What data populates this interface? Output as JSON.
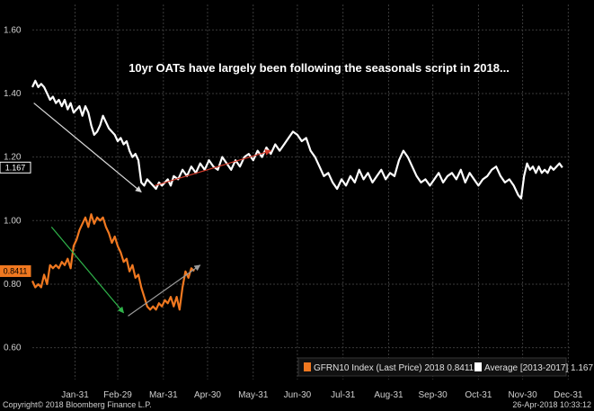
{
  "chart_data": {
    "type": "line",
    "title": "",
    "annotation": "10yr OATs have largely been following the seasonals script in 2018...",
    "xlabel": "",
    "ylabel": "",
    "ylim": [
      0.5,
      1.68
    ],
    "yticks": [
      "1.60",
      "1.40",
      "1.20",
      "1.00",
      "0.80",
      "0.60"
    ],
    "ytick_values": [
      1.6,
      1.4,
      1.2,
      1.0,
      0.8,
      0.6
    ],
    "xticks": [
      "Jan-31",
      "Feb-29",
      "Mar-31",
      "Apr-30",
      "May-31",
      "Jun-30",
      "Jul-31",
      "Aug-31",
      "Sep-30",
      "Oct-31",
      "Nov-30",
      "Dec-31"
    ],
    "xtick_days": [
      30,
      59,
      90,
      120,
      151,
      181,
      212,
      243,
      273,
      304,
      334,
      365
    ],
    "grid": true,
    "legend_position": "bottom-right",
    "series": [
      {
        "name": "GFRN10 Index (Last Price) 2018 0.8411",
        "color": "#f07820",
        "last_label": "0.8411",
        "points": [
          [
            1,
            0.81
          ],
          [
            3,
            0.79
          ],
          [
            5,
            0.8
          ],
          [
            7,
            0.79
          ],
          [
            9,
            0.83
          ],
          [
            11,
            0.8
          ],
          [
            13,
            0.86
          ],
          [
            15,
            0.85
          ],
          [
            17,
            0.86
          ],
          [
            19,
            0.85
          ],
          [
            21,
            0.87
          ],
          [
            23,
            0.86
          ],
          [
            25,
            0.88
          ],
          [
            27,
            0.85
          ],
          [
            29,
            0.92
          ],
          [
            31,
            0.94
          ],
          [
            33,
            0.97
          ],
          [
            35,
            0.99
          ],
          [
            37,
            1.01
          ],
          [
            39,
            0.98
          ],
          [
            41,
            1.02
          ],
          [
            43,
            0.99
          ],
          [
            45,
            1.01
          ],
          [
            47,
            1.0
          ],
          [
            49,
            1.01
          ],
          [
            51,
            0.98
          ],
          [
            53,
            0.96
          ],
          [
            55,
            0.93
          ],
          [
            57,
            0.95
          ],
          [
            59,
            0.92
          ],
          [
            61,
            0.9
          ],
          [
            63,
            0.87
          ],
          [
            65,
            0.88
          ],
          [
            67,
            0.84
          ],
          [
            69,
            0.86
          ],
          [
            71,
            0.82
          ],
          [
            73,
            0.83
          ],
          [
            75,
            0.79
          ],
          [
            77,
            0.76
          ],
          [
            79,
            0.73
          ],
          [
            81,
            0.72
          ],
          [
            83,
            0.73
          ],
          [
            85,
            0.72
          ],
          [
            87,
            0.74
          ],
          [
            89,
            0.73
          ],
          [
            91,
            0.75
          ],
          [
            93,
            0.74
          ],
          [
            95,
            0.76
          ],
          [
            97,
            0.73
          ],
          [
            99,
            0.76
          ],
          [
            101,
            0.72
          ],
          [
            103,
            0.79
          ],
          [
            105,
            0.84
          ],
          [
            107,
            0.82
          ],
          [
            109,
            0.85
          ],
          [
            111,
            0.8411
          ]
        ]
      },
      {
        "name": "Average [2013-2017] 1.167",
        "color": "#ffffff",
        "last_label": "1.167",
        "points": [
          [
            1,
            1.42
          ],
          [
            3,
            1.44
          ],
          [
            5,
            1.42
          ],
          [
            7,
            1.43
          ],
          [
            9,
            1.42
          ],
          [
            11,
            1.4
          ],
          [
            13,
            1.38
          ],
          [
            15,
            1.39
          ],
          [
            17,
            1.37
          ],
          [
            19,
            1.38
          ],
          [
            21,
            1.36
          ],
          [
            23,
            1.38
          ],
          [
            25,
            1.35
          ],
          [
            27,
            1.37
          ],
          [
            29,
            1.34
          ],
          [
            31,
            1.35
          ],
          [
            33,
            1.36
          ],
          [
            35,
            1.33
          ],
          [
            37,
            1.36
          ],
          [
            39,
            1.34
          ],
          [
            41,
            1.3
          ],
          [
            43,
            1.27
          ],
          [
            45,
            1.28
          ],
          [
            47,
            1.3
          ],
          [
            49,
            1.33
          ],
          [
            51,
            1.31
          ],
          [
            53,
            1.29
          ],
          [
            55,
            1.28
          ],
          [
            57,
            1.27
          ],
          [
            59,
            1.25
          ],
          [
            61,
            1.26
          ],
          [
            63,
            1.24
          ],
          [
            65,
            1.25
          ],
          [
            67,
            1.22
          ],
          [
            69,
            1.2
          ],
          [
            71,
            1.21
          ],
          [
            73,
            1.19
          ],
          [
            75,
            1.12
          ],
          [
            77,
            1.11
          ],
          [
            79,
            1.13
          ],
          [
            81,
            1.12
          ],
          [
            83,
            1.11
          ],
          [
            85,
            1.1
          ],
          [
            87,
            1.12
          ],
          [
            89,
            1.11
          ],
          [
            91,
            1.12
          ],
          [
            93,
            1.13
          ],
          [
            95,
            1.11
          ],
          [
            97,
            1.14
          ],
          [
            100,
            1.13
          ],
          [
            103,
            1.16
          ],
          [
            106,
            1.14
          ],
          [
            109,
            1.17
          ],
          [
            112,
            1.15
          ],
          [
            115,
            1.18
          ],
          [
            118,
            1.16
          ],
          [
            121,
            1.19
          ],
          [
            124,
            1.17
          ],
          [
            127,
            1.16
          ],
          [
            130,
            1.2
          ],
          [
            133,
            1.18
          ],
          [
            136,
            1.16
          ],
          [
            139,
            1.19
          ],
          [
            142,
            1.17
          ],
          [
            145,
            1.2
          ],
          [
            148,
            1.21
          ],
          [
            151,
            1.19
          ],
          [
            154,
            1.22
          ],
          [
            157,
            1.2
          ],
          [
            160,
            1.23
          ],
          [
            163,
            1.21
          ],
          [
            166,
            1.24
          ],
          [
            169,
            1.22
          ],
          [
            172,
            1.24
          ],
          [
            175,
            1.26
          ],
          [
            178,
            1.28
          ],
          [
            181,
            1.27
          ],
          [
            184,
            1.25
          ],
          [
            187,
            1.26
          ],
          [
            190,
            1.22
          ],
          [
            193,
            1.2
          ],
          [
            196,
            1.17
          ],
          [
            199,
            1.14
          ],
          [
            202,
            1.15
          ],
          [
            205,
            1.12
          ],
          [
            208,
            1.1
          ],
          [
            211,
            1.13
          ],
          [
            214,
            1.11
          ],
          [
            217,
            1.14
          ],
          [
            220,
            1.12
          ],
          [
            223,
            1.16
          ],
          [
            226,
            1.13
          ],
          [
            229,
            1.15
          ],
          [
            232,
            1.12
          ],
          [
            235,
            1.14
          ],
          [
            238,
            1.16
          ],
          [
            241,
            1.13
          ],
          [
            244,
            1.15
          ],
          [
            247,
            1.14
          ],
          [
            250,
            1.19
          ],
          [
            253,
            1.22
          ],
          [
            256,
            1.2
          ],
          [
            259,
            1.17
          ],
          [
            262,
            1.14
          ],
          [
            265,
            1.12
          ],
          [
            268,
            1.13
          ],
          [
            271,
            1.11
          ],
          [
            274,
            1.13
          ],
          [
            277,
            1.15
          ],
          [
            280,
            1.12
          ],
          [
            283,
            1.14
          ],
          [
            286,
            1.15
          ],
          [
            289,
            1.13
          ],
          [
            292,
            1.16
          ],
          [
            295,
            1.12
          ],
          [
            298,
            1.15
          ],
          [
            301,
            1.13
          ],
          [
            304,
            1.11
          ],
          [
            307,
            1.13
          ],
          [
            310,
            1.14
          ],
          [
            313,
            1.16
          ],
          [
            316,
            1.17
          ],
          [
            319,
            1.14
          ],
          [
            322,
            1.12
          ],
          [
            325,
            1.13
          ],
          [
            328,
            1.11
          ],
          [
            331,
            1.08
          ],
          [
            333,
            1.07
          ],
          [
            335,
            1.14
          ],
          [
            337,
            1.18
          ],
          [
            339,
            1.16
          ],
          [
            341,
            1.17
          ],
          [
            343,
            1.15
          ],
          [
            345,
            1.17
          ],
          [
            347,
            1.15
          ],
          [
            349,
            1.16
          ],
          [
            351,
            1.15
          ],
          [
            353,
            1.17
          ],
          [
            355,
            1.16
          ],
          [
            357,
            1.17
          ],
          [
            359,
            1.18
          ],
          [
            361,
            1.167
          ]
        ]
      }
    ],
    "annotation_arrows": [
      {
        "color": "#d8d8d8",
        "from": [
          2,
          1.37
        ],
        "to": [
          75,
          1.09
        ]
      },
      {
        "color": "#d03a2a",
        "from": [
          84,
          1.11
        ],
        "to": [
          163,
          1.22
        ]
      },
      {
        "color": "#2fb34a",
        "from": [
          14,
          0.98
        ],
        "to": [
          63,
          0.71
        ]
      },
      {
        "color": "#9a9a9a",
        "from": [
          66,
          0.7
        ],
        "to": [
          115,
          0.86
        ]
      }
    ]
  },
  "footer": {
    "copyright": "Copyright© 2018 Bloomberg Finance L.P.",
    "timestamp": "26-Apr-2018 10:33:12"
  }
}
